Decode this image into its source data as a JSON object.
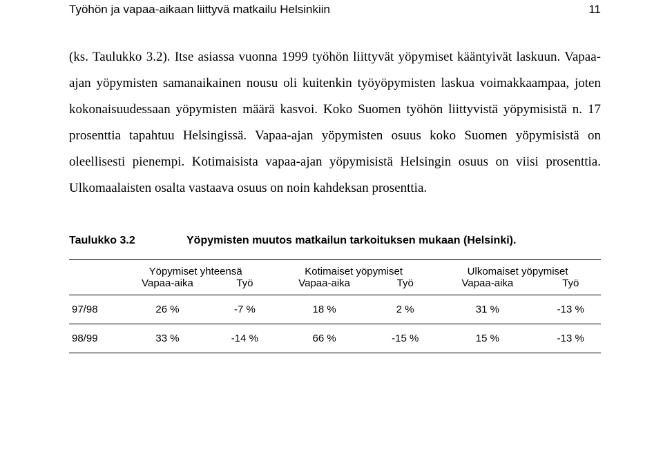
{
  "header": {
    "title": "Työhön ja vapaa-aikaan liittyvä matkailu Helsinkiin",
    "page_number": "11"
  },
  "body": {
    "paragraph": "(ks. Taulukko 3.2). Itse asiassa vuonna 1999 työhön liittyvät yöpymiset kääntyivät laskuun. Vapaa-ajan yöpymisten samanaikainen nousu oli kuitenkin työyöpymisten laskua voimakkaampaa, joten kokonaisuudessaan yöpymisten määrä kasvoi. Koko Suomen työhön liittyvistä yöpymisistä n. 17 prosenttia tapahtuu Helsingissä. Vapaa-ajan yöpymisten osuus koko Suomen yöpymisistä on oleellisesti pienempi. Kotimaisista vapaa-ajan yöpymisistä Helsingin osuus on viisi prosenttia. Ulkomaalaisten osalta vastaava osuus on noin kahdeksan prosenttia."
  },
  "table": {
    "label": "Taulukko 3.2",
    "caption": "Yöpymisten muutos matkailun tarkoituksen mukaan (Helsinki).",
    "groups": [
      {
        "title": "Yöpymiset yhteensä",
        "sub": [
          "Vapaa-aika",
          "Työ"
        ]
      },
      {
        "title": "Kotimaiset yöpymiset",
        "sub": [
          "Vapaa-aika",
          "Työ"
        ]
      },
      {
        "title": "Ulkomaiset yöpymiset",
        "sub": [
          "Vapaa-aika",
          "Työ"
        ]
      }
    ],
    "rows": [
      {
        "label": "97/98",
        "cells": [
          "26 %",
          "-7 %",
          "18 %",
          "2 %",
          "31 %",
          "-13 %"
        ]
      },
      {
        "label": "98/99",
        "cells": [
          "33 %",
          "-14 %",
          "66 %",
          "-15 %",
          "15 %",
          "-13 %"
        ]
      }
    ]
  }
}
